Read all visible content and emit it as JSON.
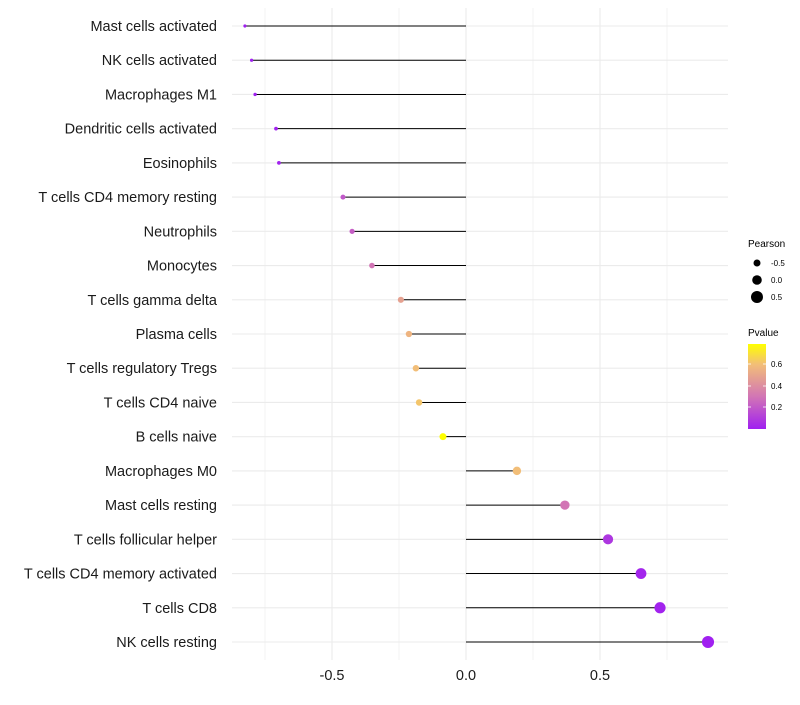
{
  "chart_data": {
    "type": "lollipop",
    "title": "",
    "xlabel": "",
    "ylabel": "",
    "xlim": [
      -0.88,
      0.96
    ],
    "x_ticks": [
      -0.5,
      0.0,
      0.5
    ],
    "x_tick_labels": [
      "-0.5",
      "0.0",
      "0.5"
    ],
    "grid": true,
    "categories": [
      "Mast cells activated",
      "NK cells activated",
      "Macrophages M1",
      "Dendritic cells activated",
      "Eosinophils",
      "T cells CD4 memory resting",
      "Neutrophils",
      "Monocytes",
      "T cells gamma delta",
      "Plasma cells",
      "T cells regulatory  Tregs",
      "T cells CD4 naive",
      "B cells naive",
      "Macrophages M0",
      "Mast cells resting",
      "T cells follicular helper",
      "T cells CD4 memory activated",
      "T cells CD8",
      "NK cells resting"
    ],
    "pearson": [
      -0.825,
      -0.8,
      -0.787,
      -0.709,
      -0.698,
      -0.459,
      -0.425,
      -0.351,
      -0.243,
      -0.213,
      -0.187,
      -0.175,
      -0.086,
      0.19,
      0.369,
      0.53,
      0.653,
      0.724,
      0.903
    ],
    "pvalue": [
      0.0,
      0.0,
      0.0,
      0.005,
      0.01,
      0.2,
      0.22,
      0.3,
      0.48,
      0.56,
      0.6,
      0.62,
      0.79,
      0.6,
      0.3,
      0.08,
      0.02,
      0.01,
      0.0
    ],
    "legend": {
      "position": "right",
      "size_title": "Pearson",
      "size_breaks": [
        -0.5,
        0.0,
        0.5
      ],
      "size_labels": [
        "-0.5",
        "0.0",
        "0.5"
      ],
      "color_title": "Pvalue",
      "color_breaks": [
        0.2,
        0.4,
        0.6
      ],
      "color_labels": [
        "0.2",
        "0.4",
        "0.6"
      ],
      "color_range": [
        0.0,
        0.79
      ]
    },
    "colors": {
      "low": "#A020F0",
      "mid": "#D275B5",
      "high_mid": "#F2BE78",
      "high": "#FFFF00",
      "segment": "#000000",
      "grid": "#EBEBEB"
    }
  }
}
